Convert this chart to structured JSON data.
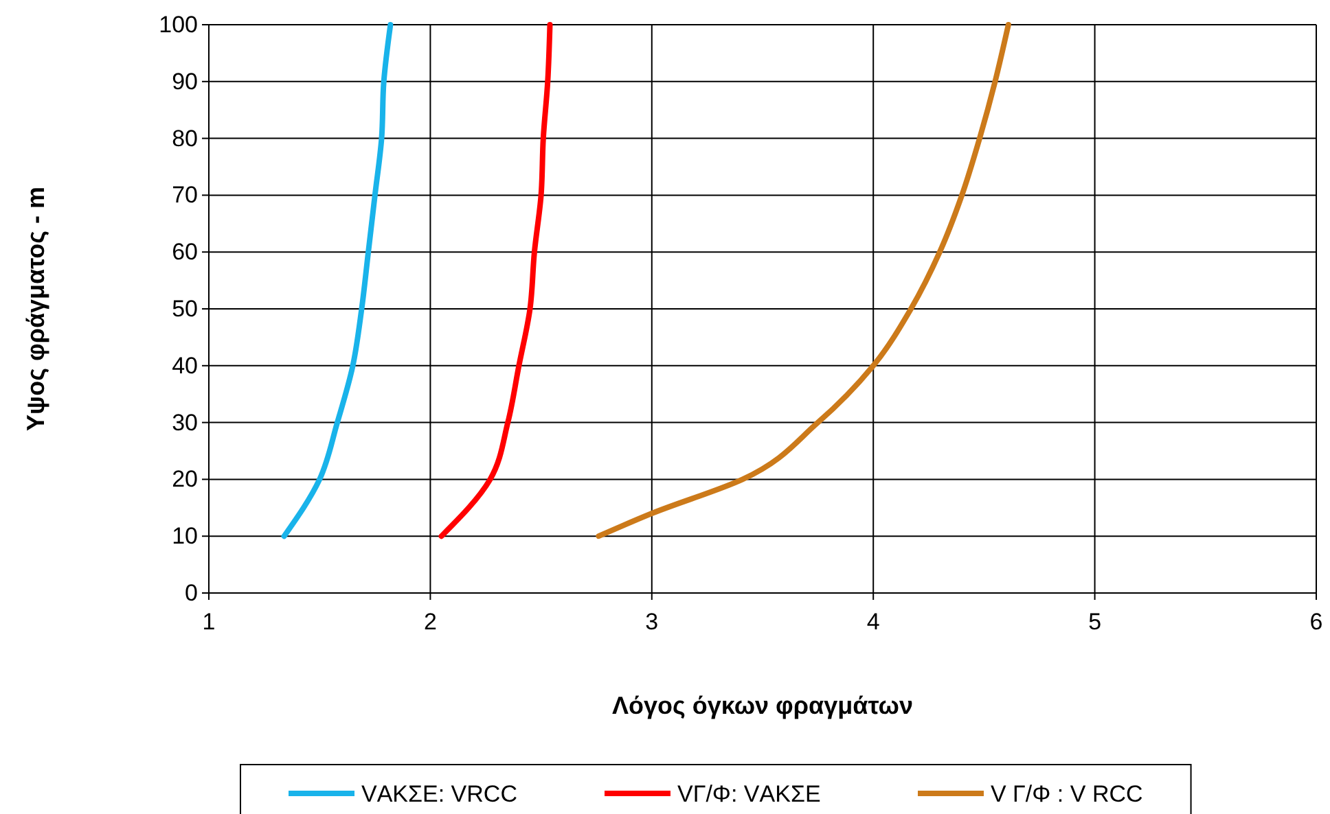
{
  "chart_data": {
    "type": "line",
    "xlabel": "Λόγος όγκων φραγμάτων",
    "ylabel": "Υψος φράγματος - m",
    "xlim": [
      1,
      6
    ],
    "xticks": [
      1,
      2,
      3,
      4,
      5,
      6
    ],
    "ylim": [
      0,
      100
    ],
    "yticks": [
      0,
      10,
      20,
      30,
      40,
      50,
      60,
      70,
      80,
      90,
      100
    ],
    "grid": true,
    "legend": "bottom",
    "marker": "none",
    "line_style": "solid",
    "series": [
      {
        "name": "VΑΚΣΕ: VRCC",
        "color": "#19b3ea",
        "x": [
          1.34,
          1.5,
          1.58,
          1.65,
          1.69,
          1.72,
          1.75,
          1.78,
          1.79,
          1.82
        ],
        "values": [
          10,
          20,
          30,
          40,
          50,
          60,
          70,
          80,
          90,
          100
        ]
      },
      {
        "name": "VΓ/Φ: VΑΚΣΕ",
        "color": "#ff0000",
        "x": [
          2.05,
          2.27,
          2.35,
          2.4,
          2.45,
          2.47,
          2.5,
          2.51,
          2.53,
          2.54
        ],
        "values": [
          10,
          20,
          30,
          40,
          50,
          60,
          70,
          80,
          90,
          100
        ]
      },
      {
        "name": "V Γ/Φ : V RCC",
        "color": "#cc7a1a",
        "x": [
          2.76,
          3.0,
          3.41,
          3.75,
          4.0,
          4.17,
          4.3,
          4.4,
          4.48,
          4.55,
          4.61
        ],
        "values": [
          10,
          14,
          20,
          30,
          40,
          50,
          60,
          70,
          80,
          90,
          100
        ]
      }
    ]
  }
}
